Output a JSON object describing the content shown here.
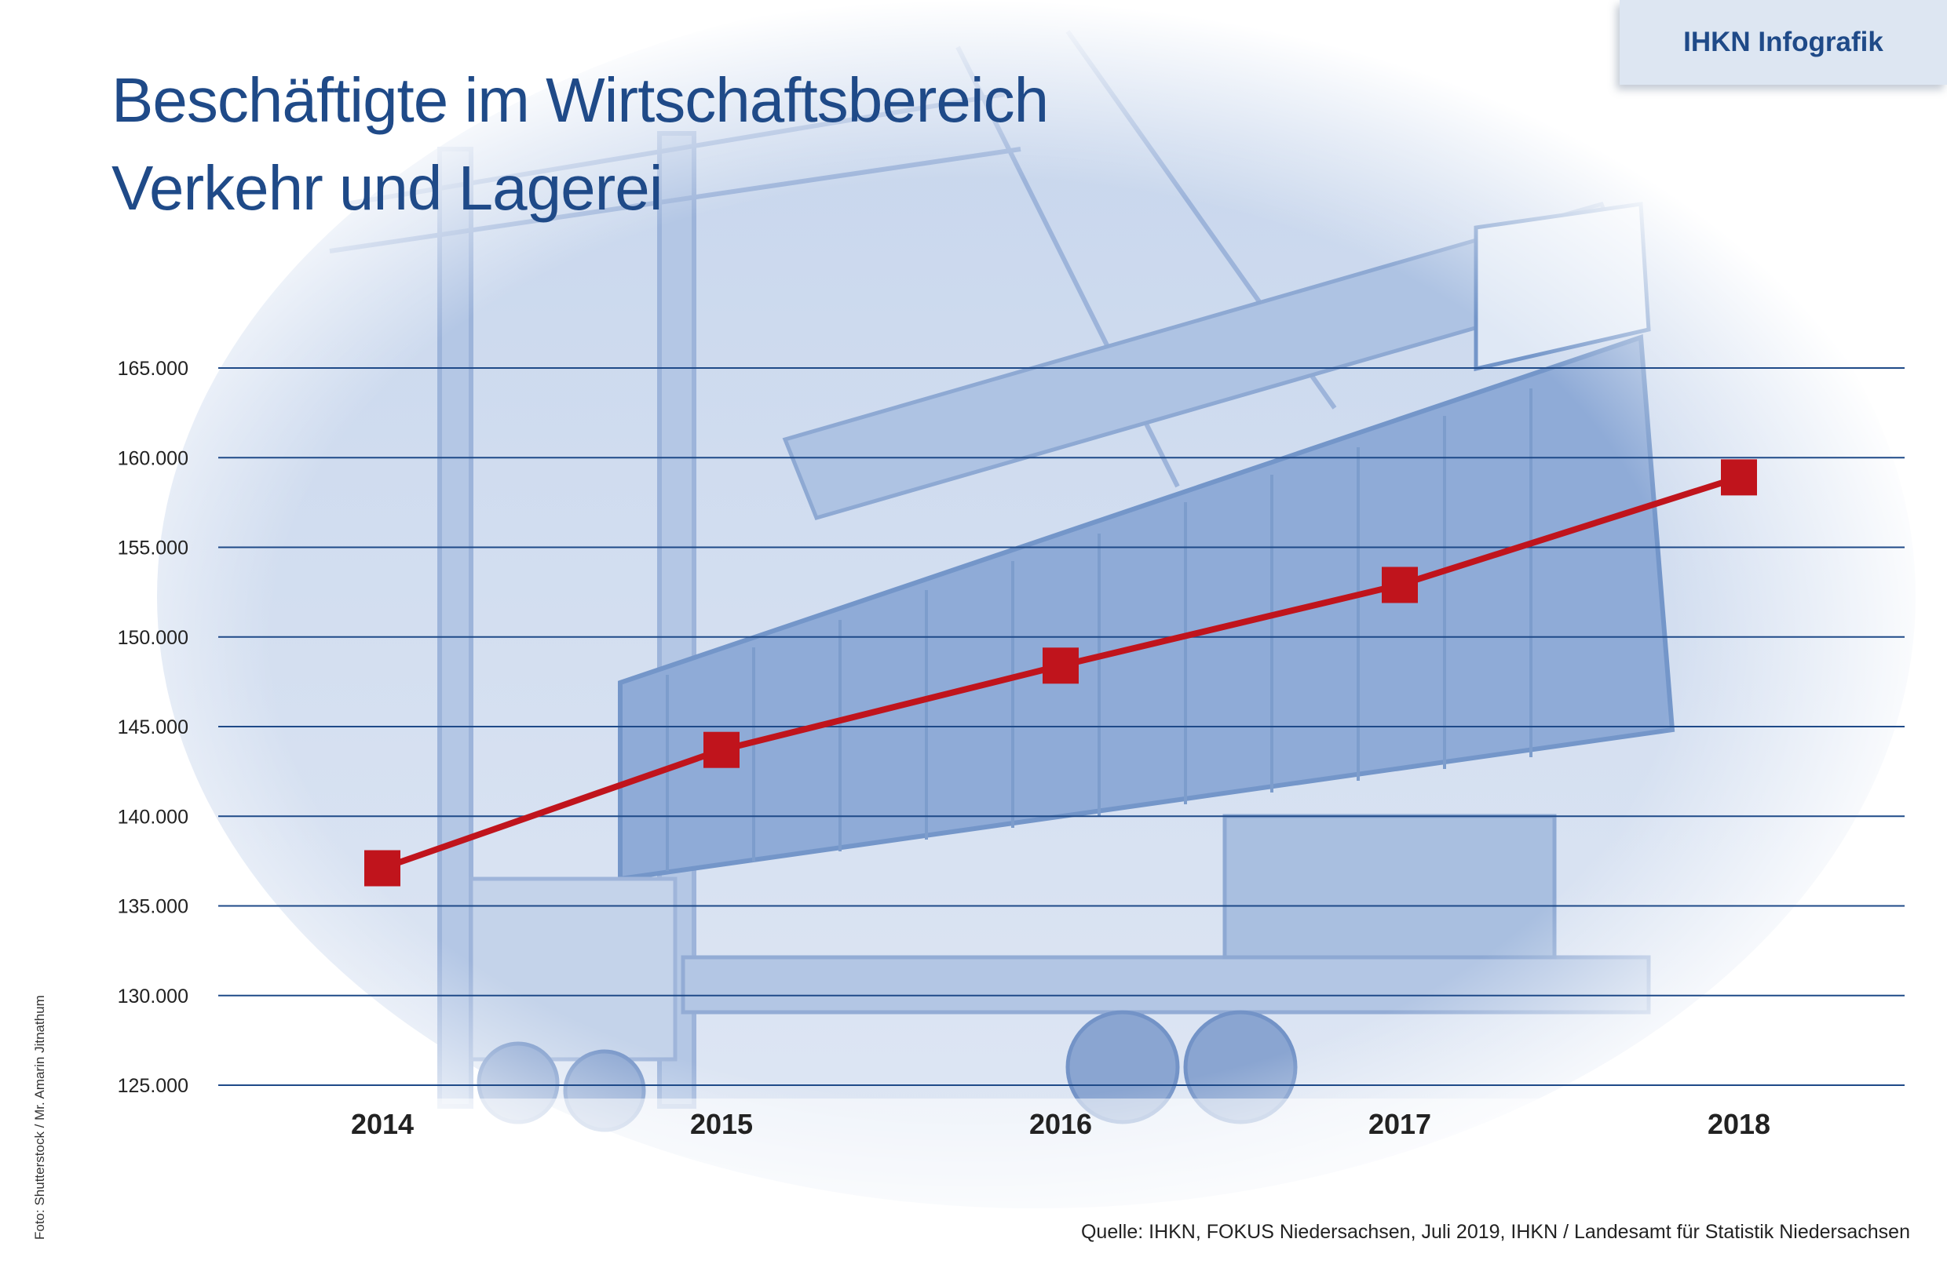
{
  "header": {
    "badge": "IHKN Infografik",
    "title_line1": "Beschäftigte im Wirtschaftsbereich",
    "title_line2": "Verkehr und Lagerei"
  },
  "footer": {
    "photo_credit": "Foto: Shutterstock / Mr. Amarin Jitnathum",
    "source": "Quelle: IHKN, FOKUS Niedersachsen, Juli 2019, IHKN / Landesamt für Statistik Niedersachsen"
  },
  "colors": {
    "title": "#1f4a88",
    "grid": "#1f4a88",
    "series": "#c0141c",
    "photo_tint": "#a9bfe0"
  },
  "background_image": "container-crane-photo",
  "chart_data": {
    "type": "line",
    "title": "Beschäftigte im Wirtschaftsbereich Verkehr und Lagerei",
    "x": [
      "2014",
      "2015",
      "2016",
      "2017",
      "2018"
    ],
    "series": [
      {
        "values": [
          137100,
          143700,
          148400,
          152900,
          158900
        ]
      }
    ],
    "y_ticks": [
      "125.000",
      "130.000",
      "135.000",
      "140.000",
      "145.000",
      "150.000",
      "155.000",
      "160.000",
      "165.000"
    ],
    "ylim": [
      125000,
      165000
    ],
    "grid": true,
    "xlabel": "",
    "ylabel": ""
  }
}
